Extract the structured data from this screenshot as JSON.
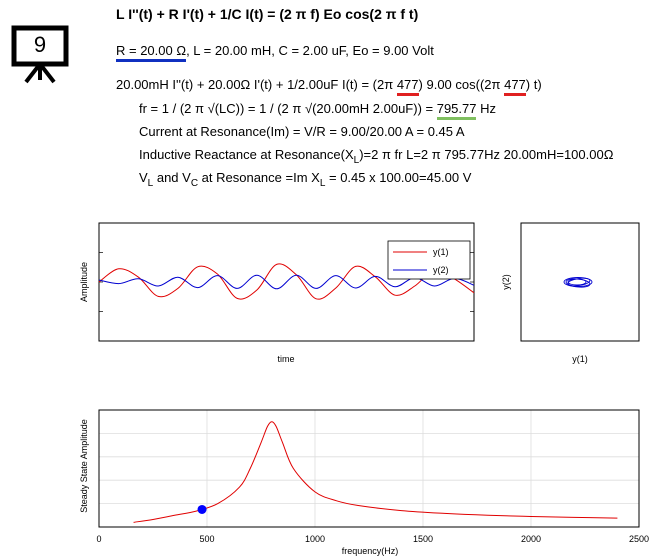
{
  "slide": {
    "number": "9",
    "equation_title": "L I''(t) + R I'(t) + 1/C I(t) = (2 π f) Eo cos(2 π f t)",
    "params": {
      "r_part": "R = 20.00 Ω",
      "rest": ", L = 20.00 mH, C = 2.00 uF, Eo = 9.00 Volt"
    },
    "ode": {
      "prefix": "20.00mH I''(t) + 20.00Ω I'(t) + 1/2.00uF I(t) = (2π ",
      "freq1": "477",
      "mid": ") 9.00 cos((2π ",
      "freq2": "477",
      "suffix": ") t)"
    },
    "resonance": {
      "prefix": "fr = 1 / (2 π √(LC)) = 1 / (2 π √(20.00mH 2.00uF)) = ",
      "value": "795.77",
      "unit": " Hz"
    },
    "current_line": "Current at Resonance(Im) = V/R = 9.00/20.00 A = 0.45 A",
    "inductive_line": {
      "a": "Inductive Reactance at Resonance(X",
      "sub": "L",
      "b": ")=2 π fr L=2 π 795.77Hz 20.00mH=100.00Ω"
    },
    "voltage_line": {
      "v1": "V",
      "sub1": "L",
      "and": " and V",
      "sub2": "C",
      "b": " at Resonance =Im X",
      "sub3": "L",
      "c": " = 0.45 x 100.00=45.00 V"
    }
  },
  "colors": {
    "underline_blue": "#1030c0",
    "underline_red": "#e02020",
    "underline_green": "#80c060",
    "series1": "#e00000",
    "series2": "#0000d0"
  },
  "chart_data": [
    {
      "type": "line",
      "title": "",
      "xlabel": "time",
      "ylabel": "Amplitude",
      "legend": "top-right",
      "series": [
        {
          "name": "y(1)",
          "color": "#e00000",
          "values": [
            0.0,
            0.33,
            0.12,
            -0.36,
            -0.16,
            0.38,
            0.2,
            -0.41,
            -0.2,
            0.44,
            0.18,
            -0.42,
            -0.15,
            0.39,
            0.13,
            -0.33,
            -0.1,
            0.3,
            0.08,
            -0.27
          ]
        },
        {
          "name": "y(2)",
          "color": "#0000d0",
          "values": [
            0.05,
            -0.04,
            0.08,
            -0.1,
            0.12,
            -0.14,
            0.16,
            -0.16,
            0.17,
            -0.17,
            0.17,
            -0.16,
            0.16,
            -0.15,
            0.14,
            -0.12,
            0.11,
            -0.1,
            0.09,
            -0.08
          ]
        }
      ]
    },
    {
      "type": "scatter",
      "title": "",
      "xlabel": "y(1)",
      "ylabel": "y(2)",
      "series": [
        {
          "name": "",
          "color": "#0000d0",
          "values": []
        }
      ]
    },
    {
      "type": "line",
      "title": "",
      "xlabel": "frequency(Hz)",
      "ylabel": "Steady State Amplitude",
      "xlim": [
        0,
        2500
      ],
      "ylim": [
        0,
        0.5
      ],
      "x_ticks": [
        "0",
        "500",
        "1000",
        "1500",
        "2000",
        "2500"
      ],
      "grid": true,
      "marker": {
        "x": 477,
        "y": 0.075
      },
      "series": [
        {
          "name": "",
          "color": "#e00000",
          "x": [
            160,
            250,
            350,
            450,
            550,
            650,
            700,
            750,
            780,
            800,
            820,
            850,
            900,
            1000,
            1100,
            1200,
            1400,
            1600,
            1800,
            2000,
            2200,
            2400
          ],
          "y": [
            0.02,
            0.032,
            0.05,
            0.068,
            0.1,
            0.17,
            0.25,
            0.36,
            0.43,
            0.45,
            0.43,
            0.36,
            0.25,
            0.15,
            0.112,
            0.092,
            0.07,
            0.058,
            0.05,
            0.045,
            0.041,
            0.038
          ]
        }
      ]
    }
  ]
}
